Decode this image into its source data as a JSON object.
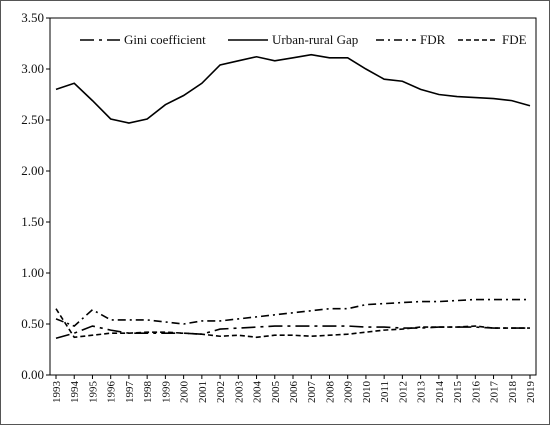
{
  "chart_data": {
    "type": "line",
    "x": [
      "1993",
      "1994",
      "1995",
      "1996",
      "1997",
      "1998",
      "1999",
      "2000",
      "2001",
      "2002",
      "2003",
      "2004",
      "2005",
      "2006",
      "2007",
      "2008",
      "2009",
      "2010",
      "2011",
      "2012",
      "2013",
      "2014",
      "2015",
      "2016",
      "2017",
      "2018",
      "2019"
    ],
    "ylim": [
      0,
      3.5
    ],
    "yticks": [
      "0.00",
      "0.50",
      "1.00",
      "1.50",
      "2.00",
      "2.50",
      "3.00",
      "3.50"
    ],
    "grid": false,
    "legend_position": "top",
    "series": [
      {
        "name": "Gini coefficient",
        "style": "longdash-dot",
        "color": "#000000",
        "values": [
          0.36,
          0.41,
          0.48,
          0.44,
          0.41,
          0.41,
          0.41,
          0.41,
          0.4,
          0.45,
          0.46,
          0.47,
          0.48,
          0.48,
          0.48,
          0.48,
          0.48,
          0.47,
          0.47,
          0.46,
          0.46,
          0.47,
          0.47,
          0.47,
          0.46,
          0.46,
          0.46
        ]
      },
      {
        "name": "Urban-rural Gap",
        "style": "solid",
        "color": "#000000",
        "values": [
          2.8,
          2.86,
          2.69,
          2.51,
          2.47,
          2.51,
          2.65,
          2.74,
          2.86,
          3.04,
          3.08,
          3.12,
          3.08,
          3.11,
          3.14,
          3.11,
          3.11,
          3.0,
          2.9,
          2.88,
          2.8,
          2.75,
          2.73,
          2.72,
          2.71,
          2.69,
          2.64
        ]
      },
      {
        "name": "FDR",
        "style": "dash-dot",
        "color": "#000000",
        "values": [
          0.55,
          0.48,
          0.64,
          0.54,
          0.54,
          0.54,
          0.52,
          0.5,
          0.53,
          0.53,
          0.55,
          0.57,
          0.59,
          0.61,
          0.63,
          0.65,
          0.65,
          0.69,
          0.7,
          0.71,
          0.72,
          0.72,
          0.73,
          0.74,
          0.74,
          0.74,
          0.74
        ]
      },
      {
        "name": "FDE",
        "style": "dashed",
        "color": "#000000",
        "values": [
          0.65,
          0.37,
          0.39,
          0.41,
          0.41,
          0.42,
          0.42,
          0.41,
          0.4,
          0.38,
          0.39,
          0.37,
          0.39,
          0.39,
          0.38,
          0.39,
          0.4,
          0.42,
          0.44,
          0.45,
          0.47,
          0.47,
          0.47,
          0.48,
          0.46,
          0.46,
          0.46
        ]
      }
    ]
  }
}
